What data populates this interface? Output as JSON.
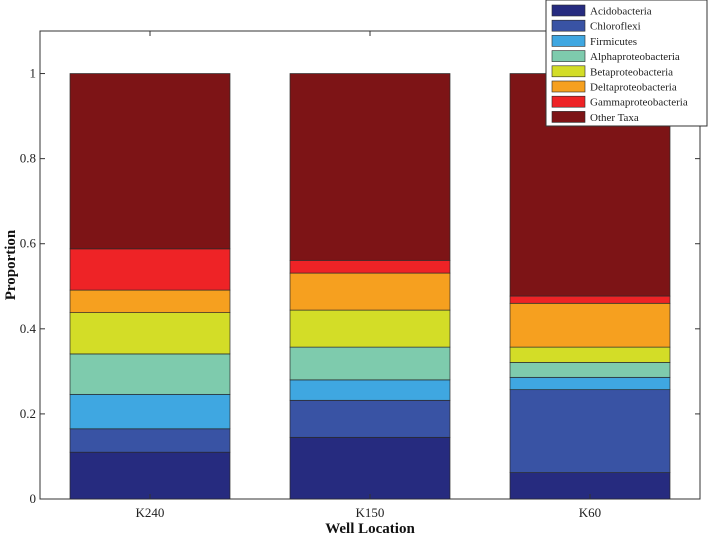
{
  "chart_data": {
    "type": "bar",
    "stacked": true,
    "title": "",
    "xlabel": "Well Location",
    "ylabel": "Proportion",
    "ylim": [
      0,
      1.1
    ],
    "yticks": [
      0,
      0.2,
      0.4,
      0.6,
      0.8,
      1
    ],
    "ytick_labels": [
      "0",
      "0.2",
      "0.4",
      "0.6",
      "0.8",
      "1"
    ],
    "grid": false,
    "legend_position": "top-right",
    "categories": [
      "K240",
      "K150",
      "K60"
    ],
    "series": [
      {
        "name": "Acidobacteria",
        "color": "#262B7F",
        "values": [
          0.11,
          0.145,
          0.062
        ]
      },
      {
        "name": "Chloroflexi",
        "color": "#3953A4",
        "values": [
          0.055,
          0.087,
          0.195
        ]
      },
      {
        "name": "Firmicutes",
        "color": "#3FA7E1",
        "values": [
          0.081,
          0.048,
          0.029
        ]
      },
      {
        "name": "Alphaproteobacteria",
        "color": "#7ECBAD",
        "values": [
          0.095,
          0.077,
          0.035
        ]
      },
      {
        "name": "Betaproteobacteria",
        "color": "#D3DD27",
        "values": [
          0.097,
          0.087,
          0.036
        ]
      },
      {
        "name": "Deltaproteobacteria",
        "color": "#F6A01F",
        "values": [
          0.053,
          0.087,
          0.103
        ]
      },
      {
        "name": "Gammaproteobacteria",
        "color": "#EE2326",
        "values": [
          0.097,
          0.03,
          0.017
        ]
      },
      {
        "name": "Other Taxa",
        "color": "#7D1416",
        "values": [
          0.412,
          0.439,
          0.523
        ]
      }
    ]
  }
}
